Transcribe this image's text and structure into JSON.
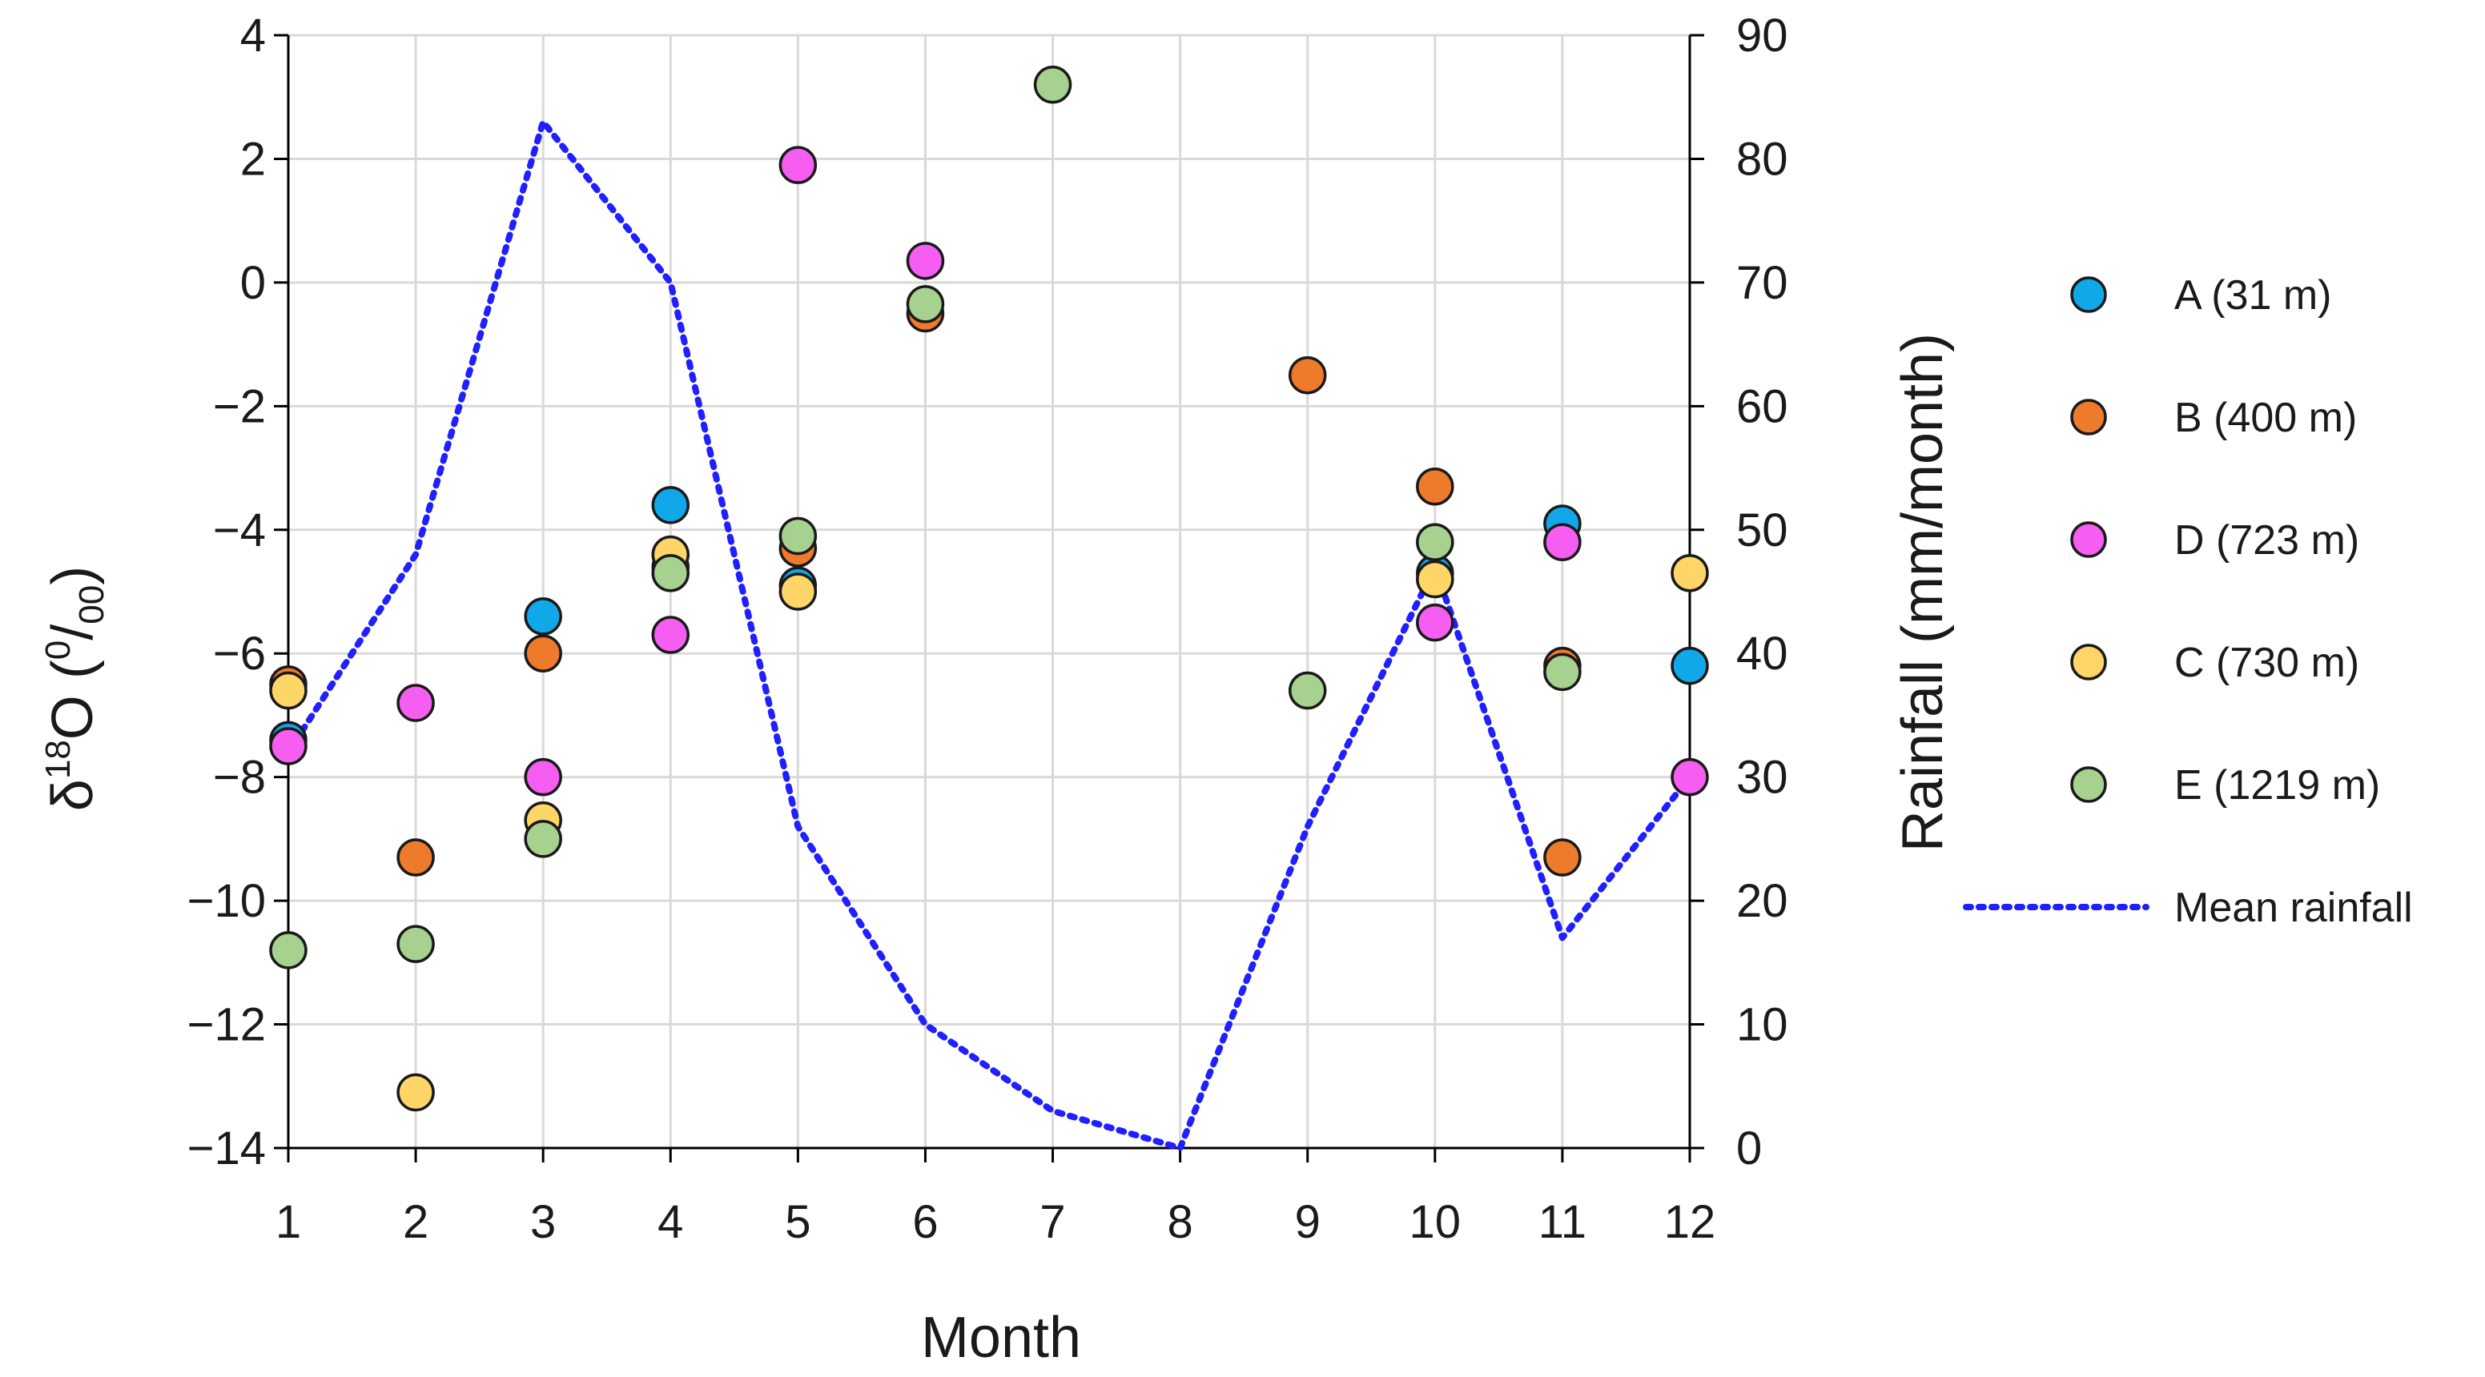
{
  "chart_data": {
    "type": "scatter",
    "xlabel": "Month",
    "ylabel": "δ18O (0/00)",
    "ylabel_parts": {
      "delta": "δ",
      "superscript": "18",
      "element": "O (",
      "unit_sup": "0",
      "slash": "/",
      "unit_sub": "00",
      "close": ")"
    },
    "y2label": "Rainfall (mm/month)",
    "xlim": [
      1,
      12
    ],
    "ylim": [
      -14,
      4
    ],
    "y2lim": [
      0,
      90
    ],
    "x_ticks": [
      "1",
      "2",
      "3",
      "4",
      "5",
      "6",
      "7",
      "8",
      "9",
      "10",
      "11",
      "12"
    ],
    "y_ticks": [
      "4",
      "2",
      "0",
      "−2",
      "−4",
      "−6",
      "−8",
      "−10",
      "−12",
      "−14"
    ],
    "y_tick_values": [
      4,
      2,
      0,
      -2,
      -4,
      -6,
      -8,
      -10,
      -12,
      -14
    ],
    "y2_ticks": [
      "90",
      "80",
      "70",
      "60",
      "50",
      "40",
      "30",
      "20",
      "10",
      "0"
    ],
    "y2_tick_values": [
      90,
      80,
      70,
      60,
      50,
      40,
      30,
      20,
      10,
      0
    ],
    "series": [
      {
        "name": "A (31 m)",
        "color": "#10a8e8",
        "points": [
          [
            1,
            -7.4
          ],
          [
            3,
            -5.4
          ],
          [
            4,
            -3.6
          ],
          [
            5,
            -4.9
          ],
          [
            10,
            -4.7
          ],
          [
            11,
            -3.9
          ],
          [
            12,
            -6.2
          ]
        ]
      },
      {
        "name": "B (400 m)",
        "color": "#ee7a2c",
        "points": [
          [
            1,
            -6.5
          ],
          [
            2,
            -9.3
          ],
          [
            3,
            -6.0
          ],
          [
            4,
            -4.6
          ],
          [
            5,
            -4.3
          ],
          [
            6,
            -0.5
          ],
          [
            9,
            -1.5
          ],
          [
            10,
            -3.3
          ],
          [
            11,
            -6.2
          ],
          [
            11,
            -9.3
          ]
        ]
      },
      {
        "name": "D (723 m)",
        "color": "#f55ef0",
        "points": [
          [
            1,
            -7.5
          ],
          [
            2,
            -6.8
          ],
          [
            3,
            -8.0
          ],
          [
            4,
            -5.7
          ],
          [
            5,
            1.9
          ],
          [
            6,
            0.35
          ],
          [
            10,
            -5.5
          ],
          [
            11,
            -4.2
          ],
          [
            12,
            -8.0
          ]
        ]
      },
      {
        "name": "C (730 m)",
        "color": "#fdd667",
        "points": [
          [
            1,
            -6.6
          ],
          [
            2,
            -13.1
          ],
          [
            3,
            -8.7
          ],
          [
            4,
            -4.4
          ],
          [
            5,
            -5.0
          ],
          [
            10,
            -4.8
          ],
          [
            12,
            -4.7
          ]
        ]
      },
      {
        "name": "E (1219 m)",
        "color": "#a6d18e",
        "points": [
          [
            1,
            -10.8
          ],
          [
            2,
            -10.7
          ],
          [
            3,
            -9.0
          ],
          [
            4,
            -4.7
          ],
          [
            5,
            -4.1
          ],
          [
            6,
            -0.35
          ],
          [
            7,
            3.2
          ],
          [
            9,
            -6.6
          ],
          [
            10,
            -4.2
          ],
          [
            11,
            -6.3
          ]
        ]
      }
    ],
    "line_series": {
      "name": "Mean rainfall",
      "color": "#1f1fff",
      "axis": "y2",
      "x": [
        1,
        2,
        3,
        4,
        5,
        6,
        7,
        8,
        9,
        10,
        11,
        12
      ],
      "values": [
        32,
        48,
        83,
        70,
        26,
        10,
        3,
        0,
        26,
        47,
        17,
        30
      ]
    },
    "legend_position": "right"
  }
}
